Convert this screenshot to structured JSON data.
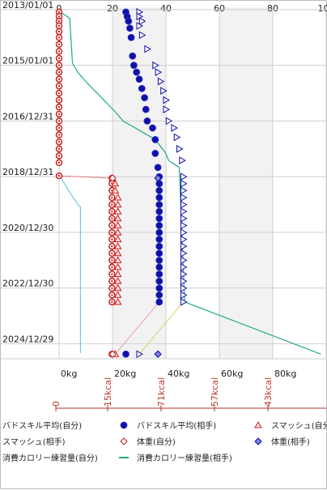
{
  "chart_data": {
    "type": "scatter",
    "y_axis": {
      "type": "date",
      "range": [
        "2012-12-01",
        "2025-07-15"
      ],
      "tick_labels": [
        "2013/01/01",
        "2015/01/01",
        "2016/12/31",
        "2018/12/31",
        "2020/12/30",
        "2022/12/30",
        "2024/12/29"
      ]
    },
    "x_axis": {
      "range": [
        0,
        100
      ],
      "top_tick_labels": [
        "0",
        "20",
        "40",
        "60",
        "80",
        "100"
      ],
      "bottom_tick_labels": [
        "0kg",
        "20kg",
        "40kg",
        "60kg",
        "80kg"
      ],
      "shaded_bands": [
        [
          20,
          40
        ],
        [
          60,
          80
        ]
      ],
      "grid": true
    },
    "calorie_axis": {
      "tick_labels": [
        "0",
        "15kcal",
        "71kcal",
        "57kcal",
        "43kcal"
      ],
      "color": "#b03030"
    },
    "series": [
      {
        "name": "バドスキル平均(自分)",
        "color": "#cc2020",
        "marker": "circle",
        "points": [
          {
            "date": "2013-02-01",
            "value": 0
          },
          {
            "date": "2013-04-01",
            "value": 0
          },
          {
            "date": "2013-06-01",
            "value": 0
          },
          {
            "date": "2013-08-01",
            "value": 0
          },
          {
            "date": "2013-10-15",
            "value": 0
          },
          {
            "date": "2014-01-01",
            "value": 0
          },
          {
            "date": "2014-04-01",
            "value": 0
          },
          {
            "date": "2014-07-01",
            "value": 0
          },
          {
            "date": "2014-10-01",
            "value": 0
          },
          {
            "date": "2015-01-01",
            "value": 0
          },
          {
            "date": "2015-04-01",
            "value": 0
          },
          {
            "date": "2015-07-01",
            "value": 0
          },
          {
            "date": "2015-10-01",
            "value": 0
          },
          {
            "date": "2016-01-01",
            "value": 0
          },
          {
            "date": "2016-04-01",
            "value": 0
          },
          {
            "date": "2016-07-01",
            "value": 0
          },
          {
            "date": "2016-10-01",
            "value": 0
          },
          {
            "date": "2016-12-31",
            "value": 0
          },
          {
            "date": "2017-04-01",
            "value": 0
          },
          {
            "date": "2017-07-01",
            "value": 0
          },
          {
            "date": "2017-10-01",
            "value": 0
          },
          {
            "date": "2018-01-01",
            "value": 0
          },
          {
            "date": "2018-04-01",
            "value": 0
          },
          {
            "date": "2018-07-01",
            "value": 0
          },
          {
            "date": "2018-12-20",
            "value": 0
          },
          {
            "date": "2019-01-20",
            "value": 19.8
          },
          {
            "date": "2019-04-01",
            "value": 19.8
          },
          {
            "date": "2019-07-01",
            "value": 19.8
          },
          {
            "date": "2019-10-01",
            "value": 19.8
          },
          {
            "date": "2020-01-01",
            "value": 19.8
          },
          {
            "date": "2020-04-01",
            "value": 19.8
          },
          {
            "date": "2020-07-01",
            "value": 19.8
          },
          {
            "date": "2020-10-01",
            "value": 19.8
          },
          {
            "date": "2021-01-01",
            "value": 19.8
          },
          {
            "date": "2021-04-01",
            "value": 19.8
          },
          {
            "date": "2021-07-01",
            "value": 19.8
          },
          {
            "date": "2021-10-01",
            "value": 19.8
          },
          {
            "date": "2022-01-01",
            "value": 19.8
          },
          {
            "date": "2022-04-01",
            "value": 19.8
          },
          {
            "date": "2022-07-01",
            "value": 19.8
          },
          {
            "date": "2022-10-01",
            "value": 19.8
          },
          {
            "date": "2023-01-01",
            "value": 19.8
          },
          {
            "date": "2023-04-01",
            "value": 19.8
          },
          {
            "date": "2023-07-01",
            "value": 19.8
          },
          {
            "date": "2025-05-15",
            "value": 19.8
          }
        ]
      },
      {
        "name": "バドスキル平均(相手)",
        "color": "#1010a8",
        "marker": "circle",
        "points": [
          {
            "date": "2013-02-01",
            "value": 25
          },
          {
            "date": "2013-04-01",
            "value": 25.5
          },
          {
            "date": "2013-06-01",
            "value": 26
          },
          {
            "date": "2013-09-01",
            "value": 26.5
          },
          {
            "date": "2014-01-01",
            "value": 27
          },
          {
            "date": "2014-09-01",
            "value": 27.5
          },
          {
            "date": "2015-01-01",
            "value": 28
          },
          {
            "date": "2015-04-01",
            "value": 29
          },
          {
            "date": "2015-07-01",
            "value": 30
          },
          {
            "date": "2015-11-01",
            "value": 31
          },
          {
            "date": "2016-03-01",
            "value": 32
          },
          {
            "date": "2016-08-01",
            "value": 32.5
          },
          {
            "date": "2016-12-31",
            "value": 33
          },
          {
            "date": "2017-04-01",
            "value": 35
          },
          {
            "date": "2017-09-01",
            "value": 36
          },
          {
            "date": "2018-03-01",
            "value": 36
          },
          {
            "date": "2018-09-01",
            "value": 37
          },
          {
            "date": "2019-01-01",
            "value": 37.5
          },
          {
            "date": "2019-04-01",
            "value": 37.5
          },
          {
            "date": "2019-07-01",
            "value": 37.5
          },
          {
            "date": "2019-10-01",
            "value": 37.5
          },
          {
            "date": "2020-01-01",
            "value": 37.5
          },
          {
            "date": "2020-04-01",
            "value": 37.5
          },
          {
            "date": "2020-07-01",
            "value": 37.5
          },
          {
            "date": "2020-10-01",
            "value": 37.5
          },
          {
            "date": "2021-01-01",
            "value": 37.5
          },
          {
            "date": "2021-04-01",
            "value": 37.5
          },
          {
            "date": "2021-07-01",
            "value": 37.5
          },
          {
            "date": "2021-10-01",
            "value": 37.5
          },
          {
            "date": "2022-01-01",
            "value": 37.5
          },
          {
            "date": "2022-04-01",
            "value": 37.5
          },
          {
            "date": "2022-07-01",
            "value": 37.5
          },
          {
            "date": "2022-10-01",
            "value": 37.5
          },
          {
            "date": "2023-01-01",
            "value": 37.5
          },
          {
            "date": "2023-04-01",
            "value": 37.5
          },
          {
            "date": "2023-07-01",
            "value": 37.5
          },
          {
            "date": "2025-05-15",
            "value": 25
          }
        ]
      },
      {
        "name": "スマッシュ(自分)",
        "color": "#cc2020",
        "marker": "triangle",
        "points": [
          {
            "date": "2019-01-20",
            "value": 20
          },
          {
            "date": "2019-04-01",
            "value": 21
          },
          {
            "date": "2019-07-01",
            "value": 21
          },
          {
            "date": "2019-10-01",
            "value": 22
          },
          {
            "date": "2020-01-01",
            "value": 22
          },
          {
            "date": "2020-04-01",
            "value": 22
          },
          {
            "date": "2020-07-01",
            "value": 22
          },
          {
            "date": "2020-10-01",
            "value": 22
          },
          {
            "date": "2021-01-01",
            "value": 22
          },
          {
            "date": "2021-04-01",
            "value": 22
          },
          {
            "date": "2021-07-01",
            "value": 22
          },
          {
            "date": "2021-10-01",
            "value": 22
          },
          {
            "date": "2022-01-01",
            "value": 22
          },
          {
            "date": "2022-04-01",
            "value": 22
          },
          {
            "date": "2022-07-01",
            "value": 22
          },
          {
            "date": "2022-10-01",
            "value": 22
          },
          {
            "date": "2023-01-01",
            "value": 22
          },
          {
            "date": "2023-04-01",
            "value": 22
          },
          {
            "date": "2023-07-01",
            "value": 22
          },
          {
            "date": "2025-05-15",
            "value": 21
          }
        ]
      },
      {
        "name": "スマッシュ(相手)",
        "color": "#1010a8",
        "marker": "triangle",
        "points": [
          {
            "date": "2013-02-01",
            "value": 30
          },
          {
            "date": "2013-04-01",
            "value": 30
          },
          {
            "date": "2013-06-01",
            "value": 31
          },
          {
            "date": "2013-08-01",
            "value": 30
          },
          {
            "date": "2013-12-01",
            "value": 31
          },
          {
            "date": "2014-06-01",
            "value": 33
          },
          {
            "date": "2015-01-01",
            "value": 36
          },
          {
            "date": "2015-04-01",
            "value": 37
          },
          {
            "date": "2015-08-01",
            "value": 38
          },
          {
            "date": "2015-12-01",
            "value": 39
          },
          {
            "date": "2016-04-01",
            "value": 40
          },
          {
            "date": "2016-08-01",
            "value": 40
          },
          {
            "date": "2016-12-31",
            "value": 41
          },
          {
            "date": "2017-04-01",
            "value": 43
          },
          {
            "date": "2017-08-01",
            "value": 44
          },
          {
            "date": "2018-01-01",
            "value": 45
          },
          {
            "date": "2018-06-01",
            "value": 46
          },
          {
            "date": "2019-01-01",
            "value": 46.5
          },
          {
            "date": "2019-04-01",
            "value": 46.5
          },
          {
            "date": "2019-07-01",
            "value": 46.5
          },
          {
            "date": "2019-10-01",
            "value": 46.5
          },
          {
            "date": "2020-01-01",
            "value": 46.5
          },
          {
            "date": "2020-04-01",
            "value": 46.5
          },
          {
            "date": "2020-07-01",
            "value": 46.5
          },
          {
            "date": "2020-10-01",
            "value": 46.5
          },
          {
            "date": "2021-01-01",
            "value": 46.5
          },
          {
            "date": "2021-04-01",
            "value": 46.5
          },
          {
            "date": "2021-07-01",
            "value": 46.5
          },
          {
            "date": "2021-10-01",
            "value": 46.5
          },
          {
            "date": "2022-01-01",
            "value": 46.5
          },
          {
            "date": "2022-04-01",
            "value": 46.5
          },
          {
            "date": "2022-07-01",
            "value": 46.5
          },
          {
            "date": "2022-10-01",
            "value": 46.5
          },
          {
            "date": "2023-01-01",
            "value": 46.5
          },
          {
            "date": "2023-04-01",
            "value": 46.5
          },
          {
            "date": "2023-07-01",
            "value": 46.5
          },
          {
            "date": "2025-05-15",
            "value": 30
          }
        ]
      },
      {
        "name": "体重(自分)",
        "color": "#cc2020",
        "marker": "diamond",
        "points": [
          {
            "date": "2019-01-20",
            "value": 20
          },
          {
            "date": "2025-05-15",
            "value": 20
          }
        ]
      },
      {
        "name": "体重(相手)",
        "color": "#1010a8",
        "marker": "diamond",
        "points": [
          {
            "date": "2019-01-20",
            "value": 37
          },
          {
            "date": "2025-05-15",
            "value": 37
          }
        ]
      },
      {
        "name": "消費カロリー練習量(自分)",
        "color": "#6fc8e8",
        "marker": "line",
        "points": [
          {
            "date": "2019-01-01",
            "value": 0.5
          },
          {
            "date": "2019-06-01",
            "value": 3
          },
          {
            "date": "2020-01-01",
            "value": 7
          },
          {
            "date": "2020-02-01",
            "value": 8
          },
          {
            "date": "2025-05-01",
            "value": 8
          }
        ]
      },
      {
        "name": "消費カロリー練習量(相手)",
        "color": "#20a880",
        "marker": "line",
        "points": [
          {
            "date": "2013-02-01",
            "value": 0.5
          },
          {
            "date": "2013-04-01",
            "value": 3
          },
          {
            "date": "2013-05-01",
            "value": 4
          },
          {
            "date": "2014-12-01",
            "value": 5
          },
          {
            "date": "2015-04-01",
            "value": 7
          },
          {
            "date": "2015-08-01",
            "value": 10
          },
          {
            "date": "2016-09-01",
            "value": 21
          },
          {
            "date": "2017-01-01",
            "value": 24
          },
          {
            "date": "2017-05-01",
            "value": 30
          },
          {
            "date": "2017-09-01",
            "value": 36
          },
          {
            "date": "2018-03-01",
            "value": 40
          },
          {
            "date": "2018-06-01",
            "value": 41
          },
          {
            "date": "2018-09-01",
            "value": 45
          },
          {
            "date": "2023-07-01",
            "value": 47
          },
          {
            "date": "2025-05-15",
            "value": 98
          }
        ]
      }
    ],
    "connectors": [
      {
        "from": {
          "date": "2018-12-20",
          "value": 0
        },
        "to": {
          "date": "2019-01-20",
          "value": 20
        },
        "color": "#e08080"
      },
      {
        "from": {
          "date": "2023-07-01",
          "value": 37.5
        },
        "to": {
          "date": "2025-05-15",
          "value": 21
        },
        "color": "#f0a0b0"
      },
      {
        "from": {
          "date": "2023-07-01",
          "value": 46.5
        },
        "to": {
          "date": "2025-05-15",
          "value": 30
        },
        "color": "#d8d870"
      }
    ]
  }
}
